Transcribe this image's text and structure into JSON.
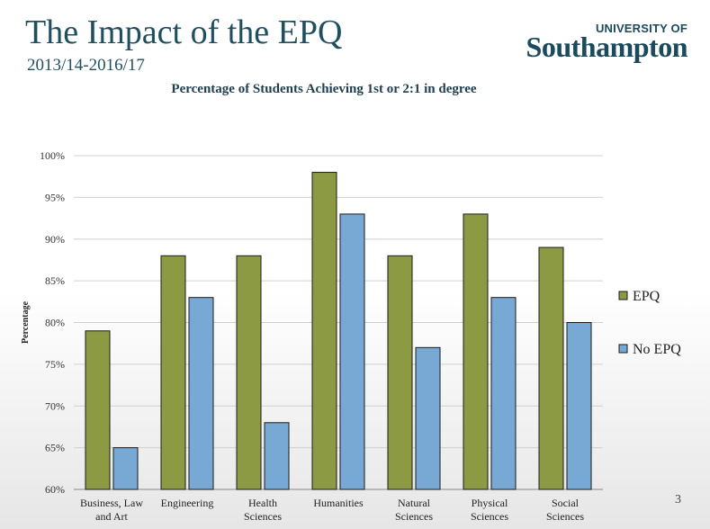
{
  "header": {
    "title": "The Impact of the EPQ",
    "subtitle": "2013/14-2016/17"
  },
  "logo": {
    "line1": "UNIVERSITY OF",
    "line2": "Southampton"
  },
  "page_number": "3",
  "colors": {
    "epq": "#8c9a44",
    "no_epq": "#78a9d4",
    "title": "#1f4f5f"
  },
  "chart_data": {
    "type": "bar",
    "title": "Percentage of Students Achieving 1st or 2:1 in degree",
    "ylabel": "Percentage",
    "xlabel": "",
    "categories": [
      [
        "Business, Law",
        "and Art"
      ],
      [
        "Engineering"
      ],
      [
        "Health",
        "Sciences"
      ],
      [
        "Humanities"
      ],
      [
        "Natural",
        "Sciences"
      ],
      [
        "Physical",
        "Sciences"
      ],
      [
        "Social",
        "Sciences"
      ]
    ],
    "series": [
      {
        "name": "EPQ",
        "values": [
          79,
          88,
          88,
          98,
          88,
          93,
          89
        ]
      },
      {
        "name": "No EPQ",
        "values": [
          65,
          83,
          68,
          93,
          77,
          83,
          80
        ]
      }
    ],
    "ylim": [
      60,
      100
    ],
    "yticks": [
      60,
      65,
      70,
      75,
      80,
      85,
      90,
      95,
      100
    ],
    "ytick_labels": [
      "60%",
      "65%",
      "70%",
      "75%",
      "80%",
      "85%",
      "90%",
      "95%",
      "100%"
    ],
    "grid": true,
    "legend_position": "right"
  }
}
